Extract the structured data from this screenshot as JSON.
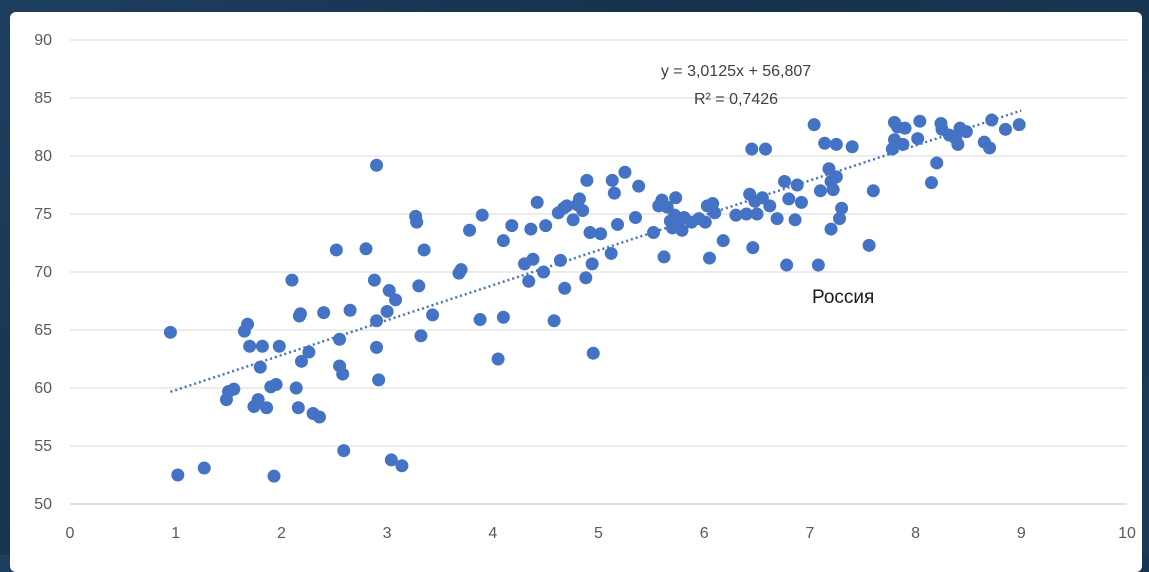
{
  "chart_data": {
    "type": "scatter",
    "xlim": [
      0,
      10
    ],
    "ylim": [
      50,
      90
    ],
    "x_ticks": [
      0,
      1,
      2,
      3,
      4,
      5,
      6,
      7,
      8,
      9,
      10
    ],
    "y_ticks": [
      50,
      55,
      60,
      65,
      70,
      75,
      80,
      85,
      90
    ],
    "grid": "horizontal",
    "point_color": "#4472c4",
    "trendline": {
      "type": "linear",
      "slope": 3.0125,
      "intercept": 56.807,
      "x_range": [
        0.95,
        9.0
      ],
      "style": "dotted"
    },
    "equation_text": "y = 3,0125x + 56,807",
    "r2_text": "R² = 0,7426",
    "annotation": "Россия",
    "points": [
      [
        0.95,
        64.8
      ],
      [
        1.02,
        52.5
      ],
      [
        1.27,
        53.1
      ],
      [
        1.48,
        59.0
      ],
      [
        1.5,
        59.7
      ],
      [
        1.55,
        59.9
      ],
      [
        1.65,
        64.9
      ],
      [
        1.68,
        65.5
      ],
      [
        1.7,
        63.6
      ],
      [
        1.74,
        58.4
      ],
      [
        1.78,
        59.0
      ],
      [
        1.8,
        61.8
      ],
      [
        1.82,
        63.6
      ],
      [
        1.86,
        58.3
      ],
      [
        1.9,
        60.1
      ],
      [
        1.93,
        52.4
      ],
      [
        1.95,
        60.3
      ],
      [
        1.98,
        63.6
      ],
      [
        2.1,
        69.3
      ],
      [
        2.14,
        60.0
      ],
      [
        2.16,
        58.3
      ],
      [
        2.17,
        66.2
      ],
      [
        2.18,
        66.4
      ],
      [
        2.19,
        62.3
      ],
      [
        2.26,
        63.1
      ],
      [
        2.3,
        57.8
      ],
      [
        2.36,
        57.5
      ],
      [
        2.4,
        66.5
      ],
      [
        2.52,
        71.9
      ],
      [
        2.55,
        61.9
      ],
      [
        2.55,
        64.2
      ],
      [
        2.58,
        61.2
      ],
      [
        2.59,
        54.6
      ],
      [
        2.65,
        66.7
      ],
      [
        2.8,
        72.0
      ],
      [
        2.88,
        69.3
      ],
      [
        2.9,
        63.5
      ],
      [
        2.9,
        65.8
      ],
      [
        2.9,
        79.2
      ],
      [
        2.92,
        60.7
      ],
      [
        3.0,
        66.6
      ],
      [
        3.02,
        68.4
      ],
      [
        3.04,
        53.8
      ],
      [
        3.08,
        67.6
      ],
      [
        3.14,
        53.3
      ],
      [
        3.27,
        74.8
      ],
      [
        3.28,
        74.3
      ],
      [
        3.3,
        68.8
      ],
      [
        3.32,
        64.5
      ],
      [
        3.35,
        71.9
      ],
      [
        3.43,
        66.3
      ],
      [
        3.68,
        69.9
      ],
      [
        3.7,
        70.2
      ],
      [
        3.78,
        73.6
      ],
      [
        3.88,
        65.9
      ],
      [
        3.9,
        74.9
      ],
      [
        4.05,
        62.5
      ],
      [
        4.1,
        66.1
      ],
      [
        4.1,
        72.7
      ],
      [
        4.18,
        74.0
      ],
      [
        4.3,
        70.7
      ],
      [
        4.34,
        69.2
      ],
      [
        4.36,
        73.7
      ],
      [
        4.38,
        71.1
      ],
      [
        4.42,
        76.0
      ],
      [
        4.48,
        70.0
      ],
      [
        4.5,
        74.0
      ],
      [
        4.58,
        65.8
      ],
      [
        4.62,
        75.1
      ],
      [
        4.64,
        71.0
      ],
      [
        4.67,
        75.5
      ],
      [
        4.68,
        68.6
      ],
      [
        4.7,
        75.7
      ],
      [
        4.76,
        74.5
      ],
      [
        4.8,
        75.8
      ],
      [
        4.82,
        76.3
      ],
      [
        4.85,
        75.3
      ],
      [
        4.88,
        69.5
      ],
      [
        4.89,
        77.9
      ],
      [
        4.92,
        73.4
      ],
      [
        4.94,
        70.7
      ],
      [
        4.95,
        63.0
      ],
      [
        5.02,
        73.3
      ],
      [
        5.12,
        71.6
      ],
      [
        5.13,
        77.9
      ],
      [
        5.15,
        76.8
      ],
      [
        5.18,
        74.1
      ],
      [
        5.25,
        78.6
      ],
      [
        5.35,
        74.7
      ],
      [
        5.38,
        77.4
      ],
      [
        5.52,
        73.4
      ],
      [
        5.57,
        75.7
      ],
      [
        5.6,
        76.2
      ],
      [
        5.62,
        71.3
      ],
      [
        5.65,
        75.6
      ],
      [
        5.68,
        74.4
      ],
      [
        5.7,
        73.8
      ],
      [
        5.72,
        74.9
      ],
      [
        5.73,
        76.4
      ],
      [
        5.76,
        74.4
      ],
      [
        5.79,
        73.6
      ],
      [
        5.81,
        74.7
      ],
      [
        5.88,
        74.3
      ],
      [
        5.95,
        74.6
      ],
      [
        6.01,
        74.3
      ],
      [
        6.03,
        75.7
      ],
      [
        6.05,
        71.2
      ],
      [
        6.08,
        75.9
      ],
      [
        6.1,
        75.1
      ],
      [
        6.18,
        72.7
      ],
      [
        6.3,
        74.9
      ],
      [
        6.4,
        75.0
      ],
      [
        6.43,
        76.7
      ],
      [
        6.45,
        80.6
      ],
      [
        6.46,
        72.1
      ],
      [
        6.48,
        76.1
      ],
      [
        6.5,
        75.0
      ],
      [
        6.55,
        76.4
      ],
      [
        6.58,
        80.6
      ],
      [
        6.62,
        75.7
      ],
      [
        6.69,
        74.6
      ],
      [
        6.76,
        77.8
      ],
      [
        6.78,
        70.6
      ],
      [
        6.8,
        76.3
      ],
      [
        6.86,
        74.5
      ],
      [
        6.88,
        77.5
      ],
      [
        6.92,
        76.0
      ],
      [
        7.04,
        82.7
      ],
      [
        7.08,
        70.6
      ],
      [
        7.1,
        77.0
      ],
      [
        7.14,
        81.1
      ],
      [
        7.18,
        78.9
      ],
      [
        7.2,
        77.8
      ],
      [
        7.2,
        73.7
      ],
      [
        7.22,
        77.1
      ],
      [
        7.25,
        78.2
      ],
      [
        7.25,
        81.0
      ],
      [
        7.28,
        74.6
      ],
      [
        7.3,
        75.5
      ],
      [
        7.4,
        80.8
      ],
      [
        7.56,
        72.3
      ],
      [
        7.6,
        77.0
      ],
      [
        7.78,
        80.6
      ],
      [
        7.8,
        81.4
      ],
      [
        7.8,
        82.9
      ],
      [
        7.83,
        82.5
      ],
      [
        7.88,
        81.0
      ],
      [
        7.9,
        82.4
      ],
      [
        8.02,
        81.5
      ],
      [
        8.04,
        83.0
      ],
      [
        8.15,
        77.7
      ],
      [
        8.2,
        79.4
      ],
      [
        8.24,
        82.8
      ],
      [
        8.25,
        82.3
      ],
      [
        8.32,
        81.8
      ],
      [
        8.38,
        81.5
      ],
      [
        8.4,
        81.0
      ],
      [
        8.42,
        82.4
      ],
      [
        8.48,
        82.1
      ],
      [
        8.65,
        81.2
      ],
      [
        8.7,
        80.7
      ],
      [
        8.72,
        83.1
      ],
      [
        8.85,
        82.3
      ],
      [
        8.98,
        82.7
      ]
    ]
  }
}
